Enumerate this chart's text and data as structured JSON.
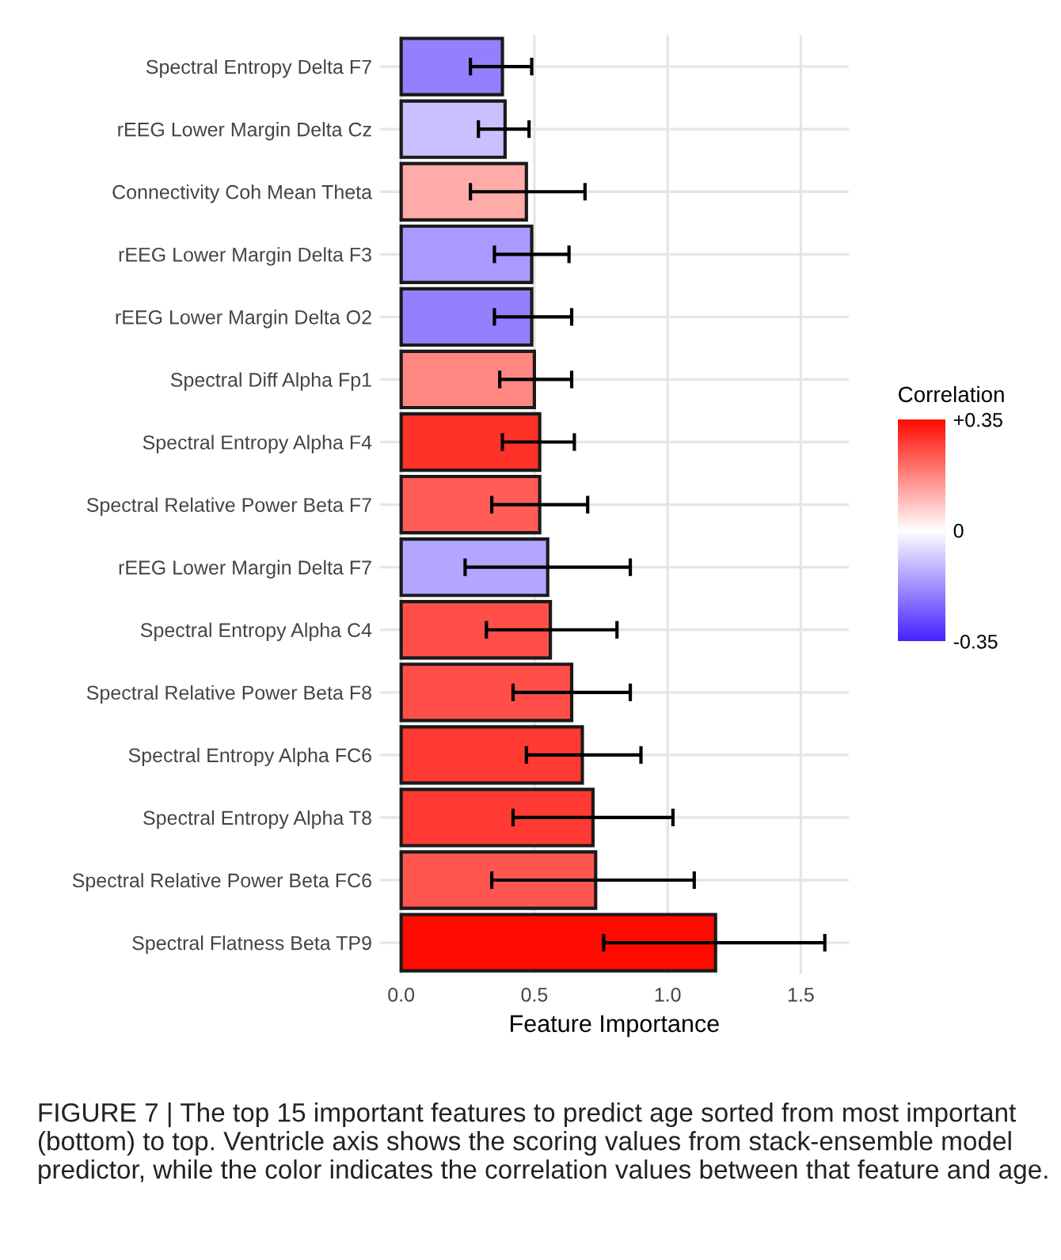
{
  "chart_data": {
    "type": "bar",
    "orientation": "horizontal",
    "categories": [
      "Spectral Entropy Delta F7",
      "rEEG Lower Margin Delta Cz",
      "Connectivity Coh Mean Theta",
      "rEEG Lower Margin Delta F3",
      "rEEG Lower Margin Delta O2",
      "Spectral Diff Alpha Fp1",
      "Spectral Entropy Alpha F4",
      "Spectral Relative Power Beta F7",
      "rEEG Lower Margin Delta F7",
      "Spectral Entropy Alpha C4",
      "Spectral Relative Power Beta F8",
      "Spectral Entropy Alpha FC6",
      "Spectral Entropy Alpha T8",
      "Spectral Relative Power Beta FC6",
      "Spectral Flatness Beta TP9"
    ],
    "values": [
      0.38,
      0.39,
      0.47,
      0.49,
      0.49,
      0.5,
      0.52,
      0.52,
      0.55,
      0.56,
      0.64,
      0.68,
      0.72,
      0.73,
      1.18
    ],
    "errors": [
      [
        0.26,
        0.49
      ],
      [
        0.29,
        0.48
      ],
      [
        0.26,
        0.69
      ],
      [
        0.35,
        0.63
      ],
      [
        0.35,
        0.64
      ],
      [
        0.37,
        0.64
      ],
      [
        0.38,
        0.65
      ],
      [
        0.34,
        0.7
      ],
      [
        0.24,
        0.86
      ],
      [
        0.32,
        0.81
      ],
      [
        0.42,
        0.86
      ],
      [
        0.47,
        0.9
      ],
      [
        0.42,
        1.02
      ],
      [
        0.34,
        1.1
      ],
      [
        0.76,
        1.59
      ]
    ],
    "cvalues": [
      -0.2,
      -0.1,
      0.12,
      -0.16,
      -0.2,
      0.17,
      0.29,
      0.23,
      -0.14,
      0.25,
      0.25,
      0.28,
      0.28,
      0.24,
      0.35
    ],
    "clim": [
      -0.35,
      0.35
    ],
    "cticks": [
      {
        "value": 0.35,
        "label": "+0.35"
      },
      0,
      -0.35
    ],
    "clabel": "Correlation",
    "xlabel": "Feature Importance",
    "xlim": [
      -0.08,
      1.68
    ],
    "xticks": [
      {
        "value": 0,
        "label": "0.0"
      },
      0.5,
      {
        "value": 1,
        "label": "1.0"
      },
      1.5
    ],
    "grid": true,
    "annotations": [
      "FIGURE 7 | The top 15 important features to predict age sorted from most important (bottom) to top. Ventricle axis shows the scoring values from stack-ensemble model predictor, while the color indicates the correlation values between that feature and age."
    ]
  }
}
